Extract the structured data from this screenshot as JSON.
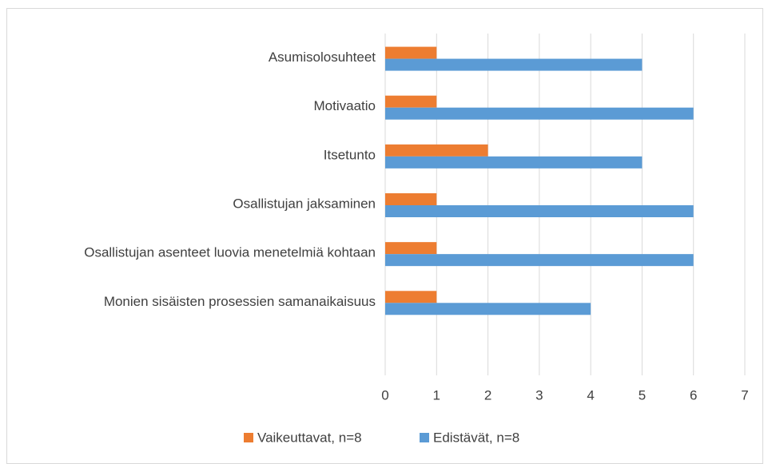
{
  "chart_data": {
    "type": "barh",
    "categories": [
      "Asumisolosuhteet",
      "Motivaatio",
      "Itsetunto",
      "Osallistujan jaksaminen",
      "Osallistujan asenteet luovia menetelmiä kohtaan",
      "Monien sisäisten prosessien samanaikaisuus",
      null
    ],
    "series": [
      {
        "name": "Vaikeuttavat, n=8",
        "color": "#ed7d31",
        "values": [
          1,
          1,
          2,
          1,
          1,
          1,
          null
        ]
      },
      {
        "name": "Edistävät, n=8",
        "color": "#5b9bd5",
        "values": [
          5,
          6,
          5,
          6,
          6,
          4,
          null
        ]
      }
    ],
    "xlim": [
      0,
      7
    ],
    "xticks": [
      0,
      1,
      2,
      3,
      4,
      5,
      6,
      7
    ],
    "grid": true,
    "legend": "bottom"
  }
}
